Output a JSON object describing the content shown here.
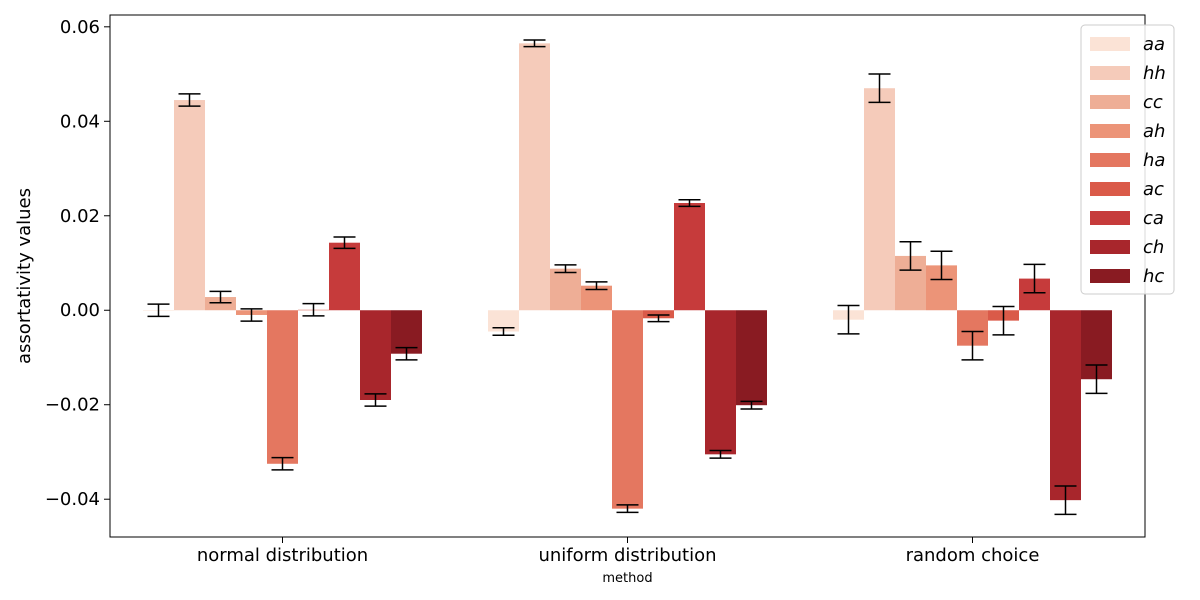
{
  "chart_data": {
    "type": "bar",
    "xlabel": "method",
    "ylabel": "assortativity values",
    "ylim": [
      -0.048,
      0.0625
    ],
    "yticks": [
      -0.04,
      -0.02,
      0.0,
      0.02,
      0.04,
      0.06
    ],
    "ytick_labels": [
      "−0.04",
      "−0.02",
      "0.00",
      "0.02",
      "0.04",
      "0.06"
    ],
    "legend_position": "top-right",
    "grid": false,
    "categories": [
      "normal distribution",
      "uniform distribution",
      "random choice"
    ],
    "series": [
      {
        "name": "aa",
        "color": "#fbe3d6",
        "values": [
          0.0,
          -0.0045,
          -0.002
        ],
        "errors": [
          0.0013,
          0.0008,
          0.003
        ]
      },
      {
        "name": "hh",
        "color": "#f5cbba",
        "values": [
          0.0445,
          0.0565,
          0.047
        ],
        "errors": [
          0.0013,
          0.0007,
          0.003
        ]
      },
      {
        "name": "cc",
        "color": "#eeae96",
        "values": [
          0.0028,
          0.0088,
          0.0115
        ],
        "errors": [
          0.0012,
          0.0008,
          0.003
        ]
      },
      {
        "name": "ah",
        "color": "#ec9478",
        "values": [
          -0.001,
          0.0052,
          0.0095
        ],
        "errors": [
          0.0013,
          0.0008,
          0.003
        ]
      },
      {
        "name": "ha",
        "color": "#e47760",
        "values": [
          -0.0325,
          -0.042,
          -0.0075
        ],
        "errors": [
          0.0013,
          0.0008,
          0.003
        ]
      },
      {
        "name": "ac",
        "color": "#da5a49",
        "values": [
          0.0001,
          -0.0017,
          -0.0022
        ],
        "errors": [
          0.0013,
          0.0007,
          0.003
        ]
      },
      {
        "name": "ca",
        "color": "#c63b3b",
        "values": [
          0.0143,
          0.0227,
          0.0067
        ],
        "errors": [
          0.0012,
          0.0007,
          0.003
        ]
      },
      {
        "name": "ch",
        "color": "#a8262c",
        "values": [
          -0.019,
          -0.0305,
          -0.0402
        ],
        "errors": [
          0.0013,
          0.0008,
          0.003
        ]
      },
      {
        "name": "hc",
        "color": "#891b22",
        "values": [
          -0.0092,
          -0.0201,
          -0.0146
        ],
        "errors": [
          0.0013,
          0.0008,
          0.003
        ]
      }
    ]
  }
}
